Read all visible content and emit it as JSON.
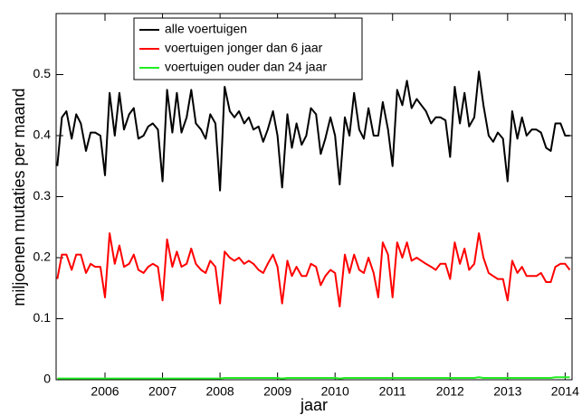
{
  "chart_data": {
    "type": "line",
    "xlabel": "jaar",
    "ylabel": "miljoenen mutaties per maand",
    "x": [
      2005.17,
      2005.25,
      2005.33,
      2005.42,
      2005.5,
      2005.58,
      2005.67,
      2005.75,
      2005.83,
      2005.92,
      2006,
      2006.08,
      2006.17,
      2006.25,
      2006.33,
      2006.42,
      2006.5,
      2006.58,
      2006.67,
      2006.75,
      2006.83,
      2006.92,
      2007,
      2007.08,
      2007.17,
      2007.25,
      2007.33,
      2007.42,
      2007.5,
      2007.58,
      2007.67,
      2007.75,
      2007.83,
      2007.92,
      2008,
      2008.08,
      2008.17,
      2008.25,
      2008.33,
      2008.42,
      2008.5,
      2008.58,
      2008.67,
      2008.75,
      2008.83,
      2008.92,
      2009,
      2009.08,
      2009.17,
      2009.25,
      2009.33,
      2009.42,
      2009.5,
      2009.58,
      2009.67,
      2009.75,
      2009.83,
      2009.92,
      2010,
      2010.08,
      2010.17,
      2010.25,
      2010.33,
      2010.42,
      2010.5,
      2010.58,
      2010.67,
      2010.75,
      2010.83,
      2010.92,
      2011,
      2011.08,
      2011.17,
      2011.25,
      2011.33,
      2011.42,
      2011.5,
      2011.58,
      2011.67,
      2011.75,
      2011.83,
      2011.92,
      2012,
      2012.08,
      2012.17,
      2012.25,
      2012.33,
      2012.42,
      2012.5,
      2012.58,
      2012.67,
      2012.75,
      2012.83,
      2012.92,
      2013,
      2013.08,
      2013.17,
      2013.25,
      2013.33,
      2013.42,
      2013.5,
      2013.58,
      2013.67,
      2013.75,
      2013.83,
      2013.92,
      2014,
      2014.08
    ],
    "series": [
      {
        "name": "alle voertuigen",
        "color": "#000000",
        "values": [
          0.35,
          0.43,
          0.44,
          0.395,
          0.435,
          0.42,
          0.375,
          0.405,
          0.405,
          0.4,
          0.335,
          0.47,
          0.4,
          0.47,
          0.41,
          0.435,
          0.445,
          0.395,
          0.4,
          0.415,
          0.42,
          0.41,
          0.325,
          0.475,
          0.405,
          0.47,
          0.405,
          0.43,
          0.475,
          0.42,
          0.41,
          0.395,
          0.435,
          0.42,
          0.31,
          0.48,
          0.44,
          0.43,
          0.44,
          0.42,
          0.43,
          0.41,
          0.415,
          0.39,
          0.41,
          0.44,
          0.4,
          0.315,
          0.435,
          0.38,
          0.42,
          0.385,
          0.4,
          0.445,
          0.435,
          0.37,
          0.395,
          0.43,
          0.4,
          0.32,
          0.43,
          0.4,
          0.47,
          0.41,
          0.395,
          0.445,
          0.4,
          0.4,
          0.455,
          0.41,
          0.35,
          0.475,
          0.45,
          0.49,
          0.445,
          0.46,
          0.45,
          0.44,
          0.42,
          0.43,
          0.43,
          0.425,
          0.365,
          0.48,
          0.42,
          0.47,
          0.415,
          0.43,
          0.505,
          0.45,
          0.4,
          0.39,
          0.405,
          0.395,
          0.325,
          0.44,
          0.395,
          0.43,
          0.4,
          0.41,
          0.41,
          0.405,
          0.38,
          0.375,
          0.42,
          0.42,
          0.4,
          0.4
        ]
      },
      {
        "name": "voertuigen jonger dan 6 jaar",
        "color": "#ff0000",
        "values": [
          0.165,
          0.205,
          0.205,
          0.18,
          0.205,
          0.205,
          0.175,
          0.19,
          0.185,
          0.185,
          0.135,
          0.24,
          0.19,
          0.22,
          0.185,
          0.19,
          0.205,
          0.18,
          0.175,
          0.185,
          0.19,
          0.185,
          0.13,
          0.23,
          0.185,
          0.21,
          0.185,
          0.19,
          0.215,
          0.19,
          0.18,
          0.175,
          0.195,
          0.185,
          0.125,
          0.21,
          0.2,
          0.195,
          0.2,
          0.19,
          0.195,
          0.19,
          0.18,
          0.175,
          0.19,
          0.205,
          0.185,
          0.125,
          0.195,
          0.17,
          0.185,
          0.17,
          0.17,
          0.19,
          0.185,
          0.155,
          0.17,
          0.18,
          0.175,
          0.12,
          0.205,
          0.175,
          0.205,
          0.18,
          0.175,
          0.2,
          0.175,
          0.135,
          0.225,
          0.205,
          0.135,
          0.225,
          0.2,
          0.225,
          0.195,
          0.2,
          0.195,
          0.19,
          0.185,
          0.18,
          0.19,
          0.19,
          0.165,
          0.225,
          0.19,
          0.215,
          0.18,
          0.19,
          0.24,
          0.2,
          0.175,
          0.17,
          0.165,
          0.165,
          0.13,
          0.195,
          0.175,
          0.185,
          0.17,
          0.17,
          0.17,
          0.175,
          0.16,
          0.16,
          0.185,
          0.19,
          0.19,
          0.18
        ]
      },
      {
        "name": "voertuigen ouder dan 24 jaar",
        "color": "#22ee22",
        "values": [
          0.002,
          0.002,
          0.002,
          0.002,
          0.002,
          0.002,
          0.002,
          0.002,
          0.002,
          0.002,
          0.002,
          0.002,
          0.002,
          0.002,
          0.002,
          0.002,
          0.002,
          0.002,
          0.002,
          0.002,
          0.002,
          0.002,
          0.002,
          0.002,
          0.002,
          0.002,
          0.002,
          0.002,
          0.002,
          0.002,
          0.002,
          0.002,
          0.002,
          0.002,
          0.002,
          0.003,
          0.003,
          0.003,
          0.003,
          0.003,
          0.003,
          0.003,
          0.003,
          0.003,
          0.003,
          0.003,
          0.003,
          0.002,
          0.003,
          0.003,
          0.003,
          0.003,
          0.003,
          0.003,
          0.003,
          0.003,
          0.003,
          0.003,
          0.003,
          0.002,
          0.003,
          0.003,
          0.003,
          0.003,
          0.003,
          0.003,
          0.003,
          0.003,
          0.003,
          0.003,
          0.003,
          0.003,
          0.003,
          0.003,
          0.003,
          0.003,
          0.003,
          0.003,
          0.003,
          0.003,
          0.003,
          0.003,
          0.003,
          0.003,
          0.003,
          0.003,
          0.003,
          0.003,
          0.004,
          0.003,
          0.003,
          0.003,
          0.003,
          0.003,
          0.003,
          0.003,
          0.003,
          0.003,
          0.003,
          0.003,
          0.003,
          0.003,
          0.003,
          0.003,
          0.004,
          0.004,
          0.004,
          0.004
        ]
      }
    ],
    "xlim": [
      2005.15,
      2014.12
    ],
    "xticks": [
      2006,
      2007,
      2008,
      2009,
      2010,
      2011,
      2012,
      2013,
      2014
    ],
    "ylim": [
      0,
      0.6
    ],
    "yticks": [
      0,
      0.1,
      0.2,
      0.3,
      0.4,
      0.5
    ],
    "legend": "upper left"
  }
}
